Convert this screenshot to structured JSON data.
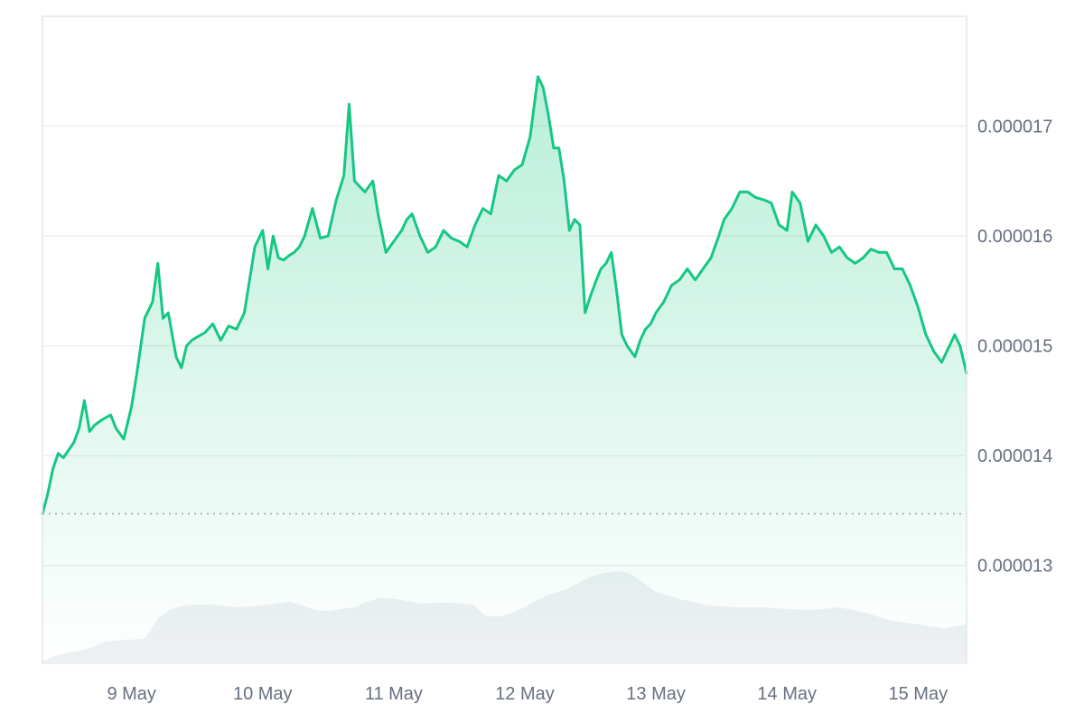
{
  "chart_data": {
    "type": "area",
    "title": "",
    "xlabel": "",
    "ylabel": "",
    "x_ticks": [
      "9 May",
      "10 May",
      "11 May",
      "12 May",
      "13 May",
      "14 May",
      "15 May"
    ],
    "y_ticks": [
      "0.000013",
      "0.000014",
      "0.000015",
      "0.000016",
      "0.000017"
    ],
    "y_tick_values": [
      1.3e-05,
      1.4e-05,
      1.5e-05,
      1.6e-05,
      1.7e-05
    ],
    "ylim": [
      1.21e-05,
      1.8e-05
    ],
    "xlim_days": [
      8.32,
      15.37
    ],
    "baseline": 1.347e-05,
    "grid": true,
    "colors": {
      "line": "#16c784",
      "fill_top": "#16c784",
      "volume": "#eef0f3",
      "grid": "#eeeeee",
      "baseline": "#9aa3ad"
    },
    "series": [
      {
        "x": [
          8.32,
          8.36,
          8.4,
          8.44,
          8.48,
          8.52,
          8.56,
          8.6,
          8.64,
          8.68,
          8.72,
          8.78,
          8.84,
          8.88,
          8.94,
          9.0,
          9.04,
          9.1,
          9.16,
          9.2,
          9.24,
          9.28,
          9.34,
          9.38,
          9.42,
          9.46,
          9.5,
          9.56,
          9.62,
          9.68,
          9.74,
          9.8,
          9.86,
          9.94,
          10.0,
          10.04,
          10.08,
          10.12,
          10.16,
          10.2,
          10.24,
          10.28,
          10.32,
          10.38,
          10.44,
          10.5,
          10.56,
          10.62,
          10.66,
          10.7,
          10.74,
          10.78,
          10.84,
          10.88,
          10.94,
          11.0,
          11.06,
          11.1,
          11.14,
          11.2,
          11.26,
          11.32,
          11.38,
          11.44,
          11.5,
          11.56,
          11.62,
          11.68,
          11.74,
          11.8,
          11.86,
          11.92,
          11.98,
          12.04,
          12.1,
          12.14,
          12.18,
          12.22,
          12.26,
          12.3,
          12.34,
          12.38,
          12.42,
          12.46,
          12.5,
          12.54,
          12.58,
          12.62,
          12.66,
          12.7,
          12.74,
          12.78,
          12.84,
          12.88,
          12.92,
          12.96,
          13.0,
          13.06,
          13.12,
          13.18,
          13.24,
          13.3,
          13.36,
          13.42,
          13.48,
          13.52,
          13.58,
          13.64,
          13.7,
          13.76,
          13.82,
          13.88,
          13.94,
          14.0,
          14.04,
          14.1,
          14.16,
          14.22,
          14.28,
          14.34,
          14.4,
          14.46,
          14.52,
          14.58,
          14.64,
          14.7,
          14.76,
          14.82,
          14.88,
          14.94,
          15.0,
          15.06,
          15.12,
          15.18,
          15.24,
          15.28,
          15.32,
          15.37
        ],
        "values": [
          1.347e-05,
          1.365e-05,
          1.388e-05,
          1.402e-05,
          1.398e-05,
          1.405e-05,
          1.412e-05,
          1.425e-05,
          1.45e-05,
          1.422e-05,
          1.428e-05,
          1.433e-05,
          1.437e-05,
          1.425e-05,
          1.415e-05,
          1.445e-05,
          1.475e-05,
          1.525e-05,
          1.54e-05,
          1.575e-05,
          1.525e-05,
          1.53e-05,
          1.49e-05,
          1.48e-05,
          1.5e-05,
          1.505e-05,
          1.508e-05,
          1.512e-05,
          1.52e-05,
          1.505e-05,
          1.518e-05,
          1.515e-05,
          1.53e-05,
          1.59e-05,
          1.605e-05,
          1.57e-05,
          1.6e-05,
          1.58e-05,
          1.578e-05,
          1.582e-05,
          1.585e-05,
          1.59e-05,
          1.6e-05,
          1.625e-05,
          1.598e-05,
          1.6e-05,
          1.632e-05,
          1.655e-05,
          1.72e-05,
          1.65e-05,
          1.645e-05,
          1.64e-05,
          1.65e-05,
          1.62e-05,
          1.585e-05,
          1.595e-05,
          1.605e-05,
          1.615e-05,
          1.62e-05,
          1.6e-05,
          1.585e-05,
          1.59e-05,
          1.605e-05,
          1.598e-05,
          1.595e-05,
          1.59e-05,
          1.61e-05,
          1.625e-05,
          1.62e-05,
          1.655e-05,
          1.65e-05,
          1.66e-05,
          1.665e-05,
          1.69e-05,
          1.745e-05,
          1.735e-05,
          1.71e-05,
          1.68e-05,
          1.68e-05,
          1.65e-05,
          1.605e-05,
          1.615e-05,
          1.61e-05,
          1.53e-05,
          1.545e-05,
          1.558e-05,
          1.57e-05,
          1.575e-05,
          1.585e-05,
          1.55e-05,
          1.51e-05,
          1.5e-05,
          1.49e-05,
          1.505e-05,
          1.515e-05,
          1.52e-05,
          1.53e-05,
          1.54e-05,
          1.555e-05,
          1.56e-05,
          1.57e-05,
          1.56e-05,
          1.57e-05,
          1.58e-05,
          1.6e-05,
          1.615e-05,
          1.625e-05,
          1.64e-05,
          1.64e-05,
          1.635e-05,
          1.633e-05,
          1.63e-05,
          1.61e-05,
          1.605e-05,
          1.64e-05,
          1.63e-05,
          1.595e-05,
          1.61e-05,
          1.6e-05,
          1.585e-05,
          1.59e-05,
          1.58e-05,
          1.575e-05,
          1.58e-05,
          1.588e-05,
          1.585e-05,
          1.585e-05,
          1.57e-05,
          1.57e-05,
          1.555e-05,
          1.535e-05,
          1.51e-05,
          1.495e-05,
          1.485e-05,
          1.5e-05,
          1.51e-05,
          1.5e-05,
          1.475e-05
        ]
      }
    ],
    "volume": {
      "x": [
        8.32,
        8.4,
        8.5,
        8.6,
        8.7,
        8.8,
        9.0,
        9.1,
        9.2,
        9.3,
        9.4,
        9.6,
        9.8,
        10.0,
        10.1,
        10.2,
        10.3,
        10.4,
        10.5,
        10.6,
        10.7,
        10.8,
        10.9,
        11.0,
        11.2,
        11.4,
        11.6,
        11.7,
        11.8,
        11.9,
        12.0,
        12.1,
        12.2,
        12.3,
        12.4,
        12.5,
        12.6,
        12.7,
        12.8,
        12.9,
        13.0,
        13.2,
        13.4,
        13.6,
        13.8,
        14.0,
        14.2,
        14.4,
        14.6,
        14.8,
        15.0,
        15.2,
        15.37
      ],
      "values": [
        3,
        8,
        12,
        14,
        18,
        24,
        26,
        27,
        48,
        58,
        62,
        63,
        60,
        62,
        64,
        66,
        62,
        57,
        56,
        58,
        60,
        66,
        70,
        69,
        64,
        65,
        63,
        51,
        50,
        54,
        60,
        68,
        74,
        78,
        85,
        92,
        96,
        98,
        96,
        86,
        76,
        68,
        62,
        60,
        60,
        58,
        57,
        60,
        54,
        46,
        42,
        38,
        42
      ]
    }
  }
}
